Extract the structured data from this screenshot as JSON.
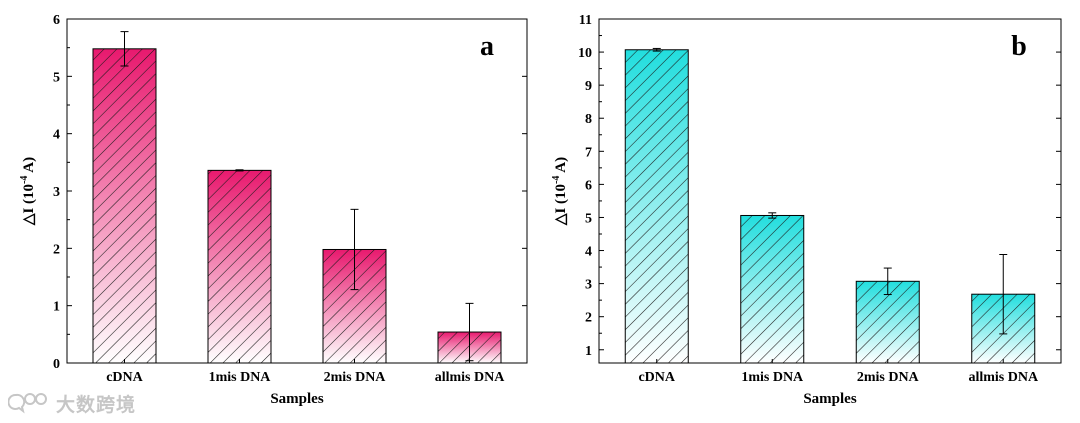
{
  "chart_data": [
    {
      "type": "bar",
      "panel_label": "a",
      "categories": [
        "cDNA",
        "1mis DNA",
        "2mis DNA",
        "allmis DNA"
      ],
      "values": [
        5.48,
        3.36,
        1.98,
        0.54
      ],
      "errors": [
        0.3,
        0.01,
        0.7,
        0.5
      ],
      "xlabel": "Samples",
      "ylabel_base": "△I (10",
      "ylabel_exp": "-4",
      "ylabel_unit": " A)",
      "ylim": [
        0,
        6
      ],
      "yticks": [
        0,
        1,
        2,
        3,
        4,
        5,
        6
      ],
      "color": "#e8196e",
      "pattern": "diagonal-hatch",
      "grid": false,
      "legend": "none"
    },
    {
      "type": "bar",
      "panel_label": "b",
      "categories": [
        "cDNA",
        "1mis DNA",
        "2mis DNA",
        "allmis DNA"
      ],
      "values": [
        10.07,
        5.06,
        3.07,
        2.68
      ],
      "errors": [
        0.04,
        0.08,
        0.4,
        1.2
      ],
      "xlabel": "Samples",
      "ylabel_base": "△I (10",
      "ylabel_exp": "-4",
      "ylabel_unit": " A)",
      "ylim": [
        0.6,
        11
      ],
      "yticks": [
        1,
        2,
        3,
        4,
        5,
        6,
        7,
        8,
        9,
        10,
        11
      ],
      "color": "#22dede",
      "pattern": "diagonal-hatch",
      "grid": false,
      "legend": "none"
    }
  ],
  "watermark": {
    "text": "大数跨境",
    "icon": "chat-bubbles-logo-icon"
  }
}
